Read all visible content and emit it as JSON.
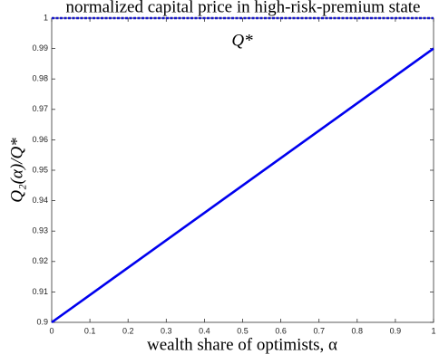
{
  "chart_data": {
    "type": "line",
    "title": "normalized capital price in high-risk-premium state",
    "xlabel": "wealth share of optimists, α",
    "ylabel": "Q₂(α)/Q*",
    "annotation": "Q*",
    "x": [
      0,
      0.1,
      0.2,
      0.3,
      0.4,
      0.5,
      0.6,
      0.7,
      0.8,
      0.9,
      1
    ],
    "series": [
      {
        "color": "#0000ee",
        "line_style": "solid",
        "values": [
          0.9,
          0.909,
          0.918,
          0.927,
          0.936,
          0.945,
          0.954,
          0.963,
          0.972,
          0.981,
          0.99
        ]
      },
      {
        "color": "#1a1acc",
        "line_style": "dashed",
        "values": [
          1,
          1,
          1,
          1,
          1,
          1,
          1,
          1,
          1,
          1,
          1
        ]
      }
    ],
    "xlim": [
      0,
      1
    ],
    "ylim": [
      0.9,
      1
    ],
    "xticks": [
      0,
      0.1,
      0.2,
      0.3,
      0.4,
      0.5,
      0.6,
      0.7,
      0.8,
      0.9,
      1
    ],
    "yticks": [
      0.9,
      0.91,
      0.92,
      0.93,
      0.94,
      0.95,
      0.96,
      0.97,
      0.98,
      0.99,
      1
    ],
    "grid": false
  }
}
